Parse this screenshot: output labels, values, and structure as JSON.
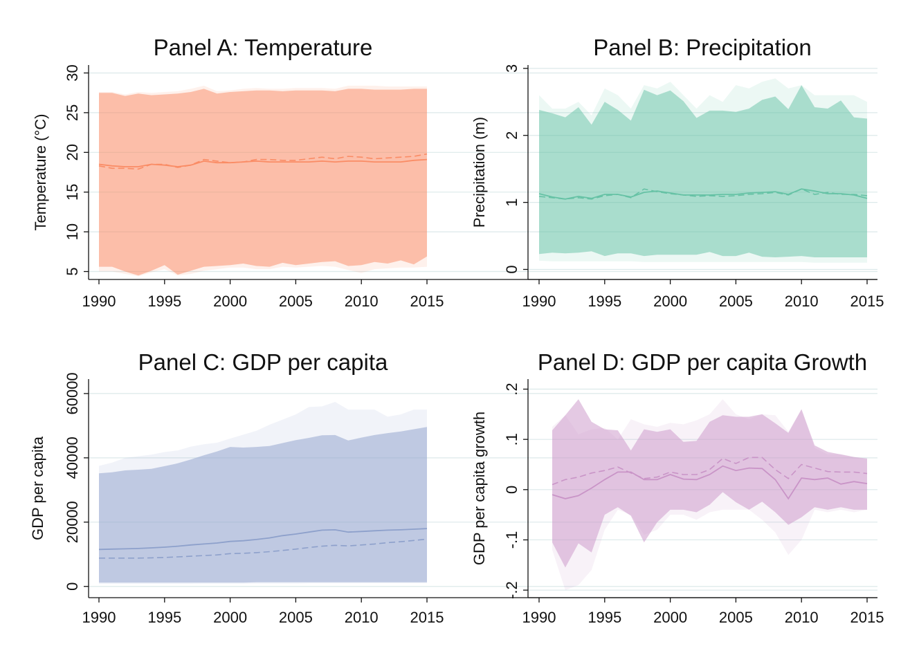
{
  "chart_data": [
    {
      "id": "A",
      "type": "area",
      "title": "Panel A: Temperature",
      "xlabel": "",
      "ylabel": "Temperature (°C)",
      "x": [
        1990,
        1991,
        1992,
        1993,
        1994,
        1995,
        1996,
        1997,
        1998,
        1999,
        2000,
        2001,
        2002,
        2003,
        2004,
        2005,
        2006,
        2007,
        2008,
        2009,
        2010,
        2011,
        2012,
        2013,
        2014,
        2015
      ],
      "xlim": [
        1990,
        2015
      ],
      "xticks": [
        1990,
        1995,
        2000,
        2005,
        2010,
        2015
      ],
      "xtick_labels": [
        "1990",
        "1995",
        "2000",
        "2005",
        "2010",
        "2015"
      ],
      "ylim": [
        4,
        31
      ],
      "yticks": [
        5,
        10,
        15,
        20,
        25,
        30
      ],
      "ytick_labels": [
        "5",
        "10",
        "15",
        "20",
        "25",
        "30"
      ],
      "grid": true,
      "color": "#fa8c65",
      "series": [
        {
          "name": "outer band upper",
          "role": "band-outer-upper",
          "values": [
            27.6,
            27.6,
            27.3,
            27.6,
            27.5,
            27.6,
            27.7,
            28.0,
            28.4,
            27.7,
            27.8,
            28.0,
            28.1,
            28.0,
            28.0,
            28.1,
            28.1,
            28.1,
            28.0,
            28.4,
            28.4,
            28.4,
            28.3,
            28.3,
            28.3,
            28.3
          ]
        },
        {
          "name": "outer band lower",
          "role": "band-outer-lower",
          "values": [
            5.0,
            5.0,
            4.7,
            4.4,
            4.9,
            5.3,
            4.5,
            4.7,
            5.1,
            5.3,
            5.5,
            5.5,
            5.3,
            5.3,
            5.6,
            5.5,
            5.6,
            5.7,
            5.6,
            5.2,
            4.8,
            5.3,
            5.4,
            5.5,
            5.5,
            5.6
          ]
        },
        {
          "name": "inner band upper",
          "role": "band-inner-upper",
          "values": [
            27.5,
            27.5,
            27.1,
            27.4,
            27.2,
            27.3,
            27.4,
            27.6,
            28.0,
            27.4,
            27.6,
            27.7,
            27.8,
            27.8,
            27.7,
            27.8,
            27.8,
            27.8,
            27.7,
            28.0,
            28.0,
            27.9,
            27.9,
            27.9,
            28.0,
            28.0
          ]
        },
        {
          "name": "inner band lower",
          "role": "band-inner-lower",
          "values": [
            5.6,
            5.6,
            5.0,
            4.5,
            5.1,
            5.8,
            4.6,
            5.1,
            5.6,
            5.7,
            5.8,
            6.0,
            5.7,
            5.6,
            6.1,
            5.8,
            6.0,
            6.2,
            6.3,
            5.7,
            5.8,
            6.2,
            6.0,
            6.4,
            5.9,
            6.9
          ]
        },
        {
          "name": "mean",
          "role": "solid-line",
          "values": [
            18.5,
            18.3,
            18.2,
            18.2,
            18.5,
            18.4,
            18.2,
            18.4,
            18.9,
            18.7,
            18.7,
            18.8,
            18.9,
            18.8,
            18.8,
            18.8,
            18.8,
            18.9,
            18.8,
            18.9,
            18.9,
            18.8,
            18.8,
            18.8,
            19.0,
            19.1
          ]
        },
        {
          "name": "median",
          "role": "dashed-line",
          "values": [
            18.3,
            18.0,
            18.0,
            17.9,
            18.5,
            18.5,
            18.1,
            18.4,
            19.1,
            18.9,
            18.7,
            18.8,
            19.1,
            19.1,
            19.0,
            19.0,
            19.2,
            19.4,
            19.2,
            19.5,
            19.4,
            19.2,
            19.3,
            19.4,
            19.5,
            19.8
          ]
        }
      ]
    },
    {
      "id": "B",
      "type": "area",
      "title": "Panel B: Precipitation",
      "xlabel": "",
      "ylabel": "Precipitation (m)",
      "x": [
        1990,
        1991,
        1992,
        1993,
        1994,
        1995,
        1996,
        1997,
        1998,
        1999,
        2000,
        2001,
        2002,
        2003,
        2004,
        2005,
        2006,
        2007,
        2008,
        2009,
        2010,
        2011,
        2012,
        2013,
        2014,
        2015
      ],
      "xlim": [
        1990,
        2015
      ],
      "xticks": [
        1990,
        1995,
        2000,
        2005,
        2010,
        2015
      ],
      "xtick_labels": [
        "1990",
        "1995",
        "2000",
        "2005",
        "2010",
        "2015"
      ],
      "ylim": [
        -0.15,
        3.05
      ],
      "yticks": [
        0,
        1,
        2,
        3
      ],
      "ytick_labels": [
        "0",
        "1",
        "2",
        "3"
      ],
      "grid": true,
      "color": "#66c2a5",
      "series": [
        {
          "name": "outer band upper",
          "role": "band-outer-upper",
          "values": [
            2.6,
            2.4,
            2.4,
            2.5,
            2.3,
            2.7,
            2.6,
            2.4,
            2.75,
            2.7,
            2.8,
            2.6,
            2.4,
            2.6,
            2.5,
            2.75,
            2.7,
            2.8,
            2.85,
            2.7,
            2.75,
            2.6,
            2.6,
            2.6,
            2.6,
            2.5
          ]
        },
        {
          "name": "outer band lower",
          "role": "band-outer-lower",
          "values": [
            0.13,
            0.12,
            0.12,
            0.12,
            0.12,
            0.12,
            0.12,
            0.12,
            0.11,
            0.11,
            0.11,
            0.11,
            0.11,
            0.11,
            0.11,
            0.11,
            0.11,
            0.11,
            0.11,
            0.11,
            0.11,
            0.1,
            0.1,
            0.1,
            0.1,
            0.1
          ]
        },
        {
          "name": "inner band upper",
          "role": "band-inner-upper",
          "values": [
            2.38,
            2.33,
            2.27,
            2.42,
            2.16,
            2.5,
            2.38,
            2.22,
            2.68,
            2.6,
            2.67,
            2.51,
            2.26,
            2.37,
            2.37,
            2.35,
            2.4,
            2.53,
            2.58,
            2.39,
            2.75,
            2.42,
            2.4,
            2.52,
            2.27,
            2.25
          ]
        },
        {
          "name": "inner band lower",
          "role": "band-inner-lower",
          "values": [
            0.23,
            0.25,
            0.24,
            0.25,
            0.27,
            0.2,
            0.24,
            0.24,
            0.2,
            0.22,
            0.22,
            0.22,
            0.22,
            0.26,
            0.2,
            0.2,
            0.25,
            0.19,
            0.18,
            0.19,
            0.2,
            0.18,
            0.18,
            0.18,
            0.18,
            0.18
          ]
        },
        {
          "name": "mean",
          "role": "solid-line",
          "values": [
            1.13,
            1.08,
            1.05,
            1.09,
            1.06,
            1.12,
            1.12,
            1.08,
            1.15,
            1.17,
            1.14,
            1.11,
            1.11,
            1.11,
            1.12,
            1.12,
            1.14,
            1.15,
            1.16,
            1.12,
            1.2,
            1.17,
            1.13,
            1.13,
            1.11,
            1.06
          ]
        },
        {
          "name": "median",
          "role": "dashed-line",
          "values": [
            1.09,
            1.07,
            1.05,
            1.07,
            1.05,
            1.1,
            1.12,
            1.07,
            1.2,
            1.16,
            1.13,
            1.11,
            1.09,
            1.1,
            1.09,
            1.1,
            1.12,
            1.13,
            1.15,
            1.11,
            1.2,
            1.12,
            1.15,
            1.12,
            1.12,
            1.1
          ]
        }
      ]
    },
    {
      "id": "C",
      "type": "area",
      "title": "Panel C: GDP per capita",
      "xlabel": "",
      "ylabel": "GDP per capita",
      "x": [
        1990,
        1991,
        1992,
        1993,
        1994,
        1995,
        1996,
        1997,
        1998,
        1999,
        2000,
        2001,
        2002,
        2003,
        2004,
        2005,
        2006,
        2007,
        2008,
        2009,
        2010,
        2011,
        2012,
        2013,
        2014,
        2015
      ],
      "xlim": [
        1990,
        2015
      ],
      "xticks": [
        1990,
        1995,
        2000,
        2005,
        2010,
        2015
      ],
      "xtick_labels": [
        "1990",
        "1995",
        "2000",
        "2005",
        "2010",
        "2015"
      ],
      "ylim": [
        -3500,
        64500
      ],
      "yticks": [
        0,
        20000,
        40000,
        60000
      ],
      "ytick_labels": [
        "0",
        "20000",
        "40000",
        "60000"
      ],
      "grid": true,
      "color": "#8da0cb",
      "series": [
        {
          "name": "outer band upper",
          "role": "band-outer-upper",
          "values": [
            37500,
            38500,
            40000,
            40500,
            41000,
            41800,
            42300,
            43500,
            44200,
            44700,
            46000,
            47200,
            48400,
            50300,
            51900,
            53500,
            55800,
            56000,
            57400,
            55000,
            55000,
            55000,
            52800,
            53500,
            55000,
            55000
          ]
        },
        {
          "name": "outer band lower",
          "role": "band-outer-lower",
          "values": [
            800,
            800,
            800,
            800,
            800,
            800,
            800,
            800,
            850,
            850,
            850,
            850,
            900,
            900,
            900,
            900,
            950,
            950,
            950,
            950,
            1000,
            1000,
            1000,
            1000,
            1000,
            1000
          ]
        },
        {
          "name": "inner band upper",
          "role": "band-inner-upper",
          "values": [
            35200,
            35500,
            36100,
            36300,
            36600,
            37400,
            38300,
            39500,
            40800,
            42000,
            43400,
            43200,
            43400,
            43700,
            44600,
            45500,
            46200,
            47000,
            47100,
            45400,
            46300,
            47100,
            47700,
            48200,
            48900,
            49600
          ]
        },
        {
          "name": "inner band lower",
          "role": "band-inner-lower",
          "values": [
            1200,
            1200,
            1200,
            1200,
            1200,
            1200,
            1200,
            1200,
            1200,
            1200,
            1200,
            1200,
            1300,
            1300,
            1300,
            1300,
            1300,
            1300,
            1300,
            1300,
            1300,
            1300,
            1300,
            1300,
            1300,
            1300
          ]
        },
        {
          "name": "mean",
          "role": "solid-line",
          "values": [
            11500,
            11600,
            11700,
            11800,
            12000,
            12200,
            12500,
            12900,
            13200,
            13500,
            14000,
            14200,
            14600,
            15100,
            15800,
            16300,
            16900,
            17500,
            17600,
            16900,
            17100,
            17300,
            17500,
            17600,
            17800,
            18000
          ]
        },
        {
          "name": "median",
          "role": "dashed-line",
          "values": [
            8800,
            8800,
            8800,
            8800,
            8900,
            9000,
            9200,
            9400,
            9600,
            9800,
            10200,
            10300,
            10500,
            10800,
            11200,
            11600,
            12100,
            12500,
            12800,
            12600,
            12900,
            13200,
            13600,
            13900,
            14300,
            14700
          ]
        }
      ]
    },
    {
      "id": "D",
      "type": "area",
      "title": "Panel D: GDP per capita Growth",
      "xlabel": "",
      "ylabel": "GDP per capita growth",
      "x": [
        1991,
        1992,
        1993,
        1994,
        1995,
        1996,
        1997,
        1998,
        1999,
        2000,
        2001,
        2002,
        2003,
        2004,
        2005,
        2006,
        2007,
        2008,
        2009,
        2010,
        2011,
        2012,
        2013,
        2014,
        2015
      ],
      "xlim": [
        1990,
        2015
      ],
      "xticks": [
        1990,
        1995,
        2000,
        2005,
        2010,
        2015
      ],
      "xtick_labels": [
        "1990",
        "1995",
        "2000",
        "2005",
        "2010",
        "2015"
      ],
      "ylim": [
        -0.215,
        0.22
      ],
      "yticks": [
        -0.2,
        -0.1,
        0,
        0.1,
        0.2
      ],
      "ytick_labels": [
        "-.2",
        "-.1",
        "0",
        ".1",
        ".2"
      ],
      "grid": true,
      "color": "#c994c7",
      "series": [
        {
          "name": "outer band upper",
          "role": "band-outer-upper",
          "values": [
            0.125,
            0.148,
            0.11,
            0.12,
            0.123,
            0.1,
            0.14,
            0.13,
            0.125,
            0.133,
            0.13,
            0.138,
            0.15,
            0.18,
            0.15,
            0.14,
            0.15,
            0.148,
            0.115,
            0.16,
            0.083,
            0.07,
            0.071,
            0.065,
            0.06
          ]
        },
        {
          "name": "outer band lower",
          "role": "band-outer-lower",
          "values": [
            -0.12,
            -0.2,
            -0.19,
            -0.16,
            -0.08,
            -0.04,
            -0.05,
            -0.09,
            -0.08,
            -0.05,
            -0.05,
            -0.06,
            -0.045,
            -0.04,
            -0.04,
            -0.04,
            -0.06,
            -0.085,
            -0.13,
            -0.1,
            -0.04,
            -0.045,
            -0.04,
            -0.045,
            -0.04
          ]
        },
        {
          "name": "inner band upper",
          "role": "band-inner-upper",
          "values": [
            0.118,
            0.148,
            0.18,
            0.135,
            0.12,
            0.118,
            0.078,
            0.12,
            0.115,
            0.12,
            0.095,
            0.097,
            0.135,
            0.148,
            0.145,
            0.145,
            0.15,
            0.132,
            0.113,
            0.16,
            0.088,
            0.075,
            0.07,
            0.065,
            0.062
          ]
        },
        {
          "name": "inner band lower",
          "role": "band-inner-lower",
          "values": [
            -0.105,
            -0.155,
            -0.107,
            -0.125,
            -0.05,
            -0.035,
            -0.052,
            -0.105,
            -0.065,
            -0.04,
            -0.04,
            -0.045,
            -0.03,
            -0.005,
            -0.025,
            -0.04,
            -0.024,
            -0.045,
            -0.07,
            -0.055,
            -0.035,
            -0.04,
            -0.035,
            -0.04,
            -0.04
          ]
        },
        {
          "name": "mean",
          "role": "solid-line",
          "values": [
            -0.01,
            -0.018,
            -0.012,
            0.003,
            0.02,
            0.035,
            0.035,
            0.02,
            0.02,
            0.03,
            0.021,
            0.02,
            0.03,
            0.047,
            0.038,
            0.043,
            0.042,
            0.02,
            -0.018,
            0.023,
            0.02,
            0.023,
            0.011,
            0.016,
            0.012
          ]
        },
        {
          "name": "median",
          "role": "dashed-line",
          "values": [
            0.01,
            0.02,
            0.025,
            0.033,
            0.038,
            0.045,
            0.033,
            0.022,
            0.025,
            0.035,
            0.03,
            0.03,
            0.04,
            0.062,
            0.052,
            0.064,
            0.064,
            0.04,
            0.022,
            0.05,
            0.043,
            0.036,
            0.035,
            0.035,
            0.032
          ]
        }
      ]
    }
  ]
}
